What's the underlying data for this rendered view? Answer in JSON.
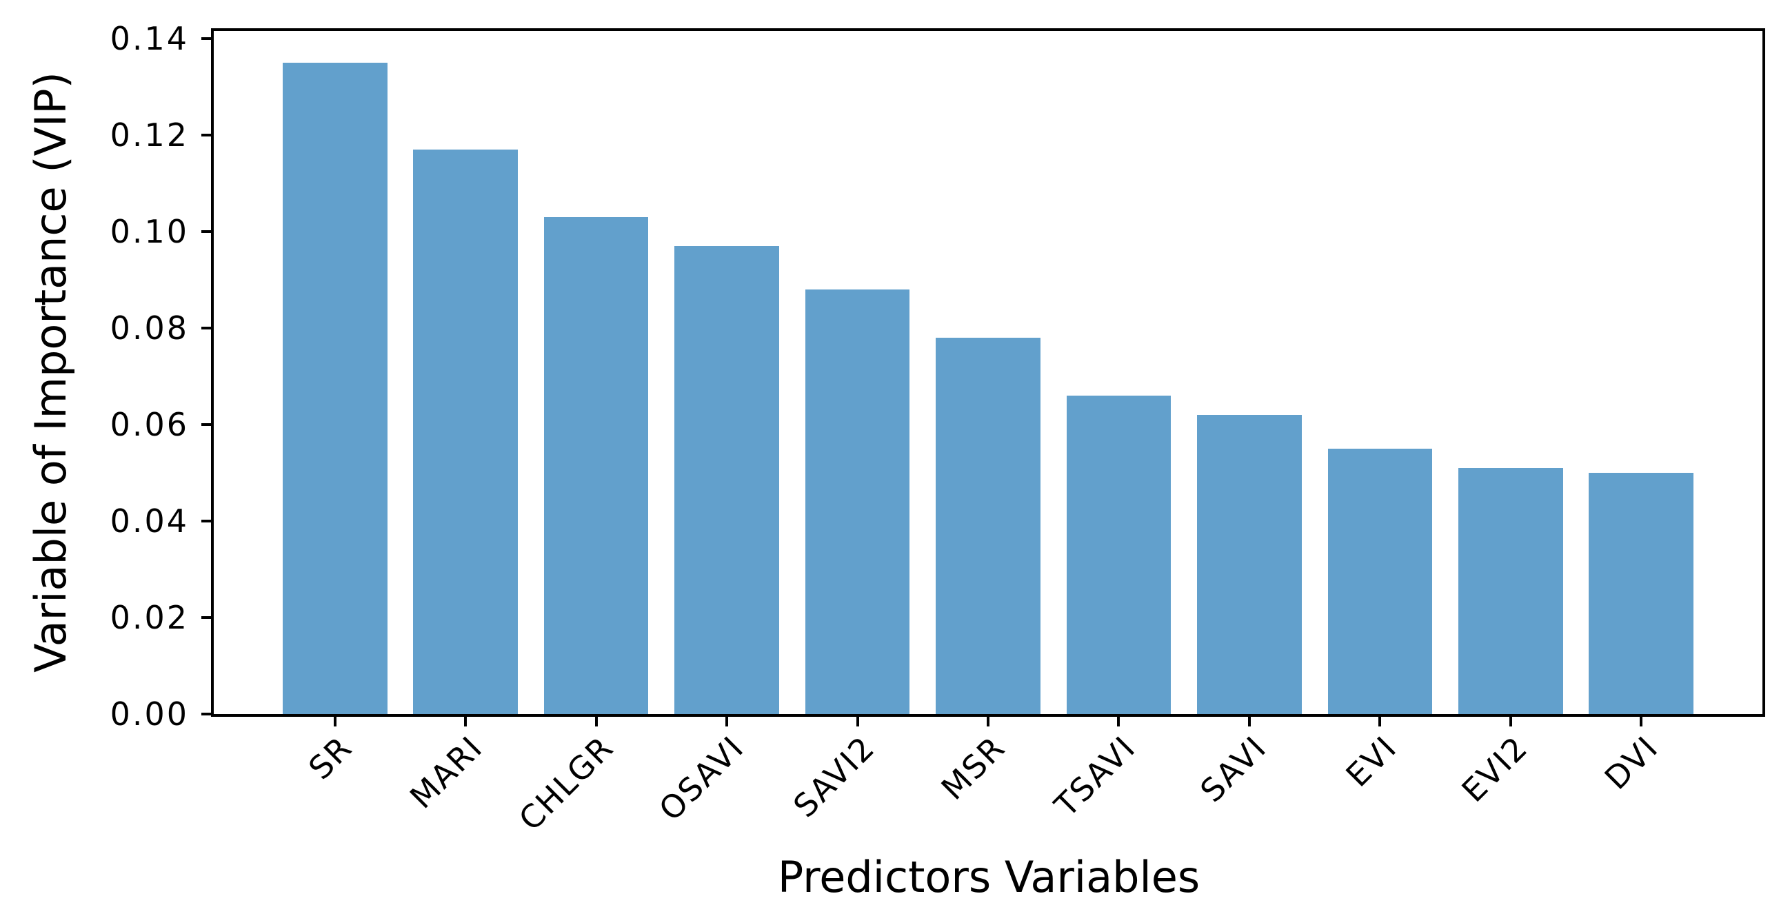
{
  "chart_data": {
    "type": "bar",
    "title": "",
    "categories": [
      "SR",
      "MARI",
      "CHLGR",
      "OSAVI",
      "SAVI2",
      "MSR",
      "TSAVI",
      "SAVI",
      "EVI",
      "EVI2",
      "DVI"
    ],
    "values": [
      0.135,
      0.117,
      0.103,
      0.097,
      0.088,
      0.078,
      0.066,
      0.062,
      0.055,
      0.051,
      0.05
    ],
    "xlabel": "Predictors Variables",
    "ylabel": "Variable of Importance (VIP)",
    "ylim": [
      0,
      0.1416
    ],
    "yticks": [
      0.0,
      0.02,
      0.04,
      0.06,
      0.08,
      0.1,
      0.12,
      0.14
    ],
    "ytick_labels": [
      "0.00",
      "0.02",
      "0.04",
      "0.06",
      "0.08",
      "0.10",
      "0.12",
      "0.14"
    ],
    "x_tick_rotation": 45,
    "grid": false,
    "legend": null,
    "bar_color": "#62a0cc",
    "axis_color": "#000000",
    "text_color": "#000000",
    "background_color": "#ffffff"
  }
}
